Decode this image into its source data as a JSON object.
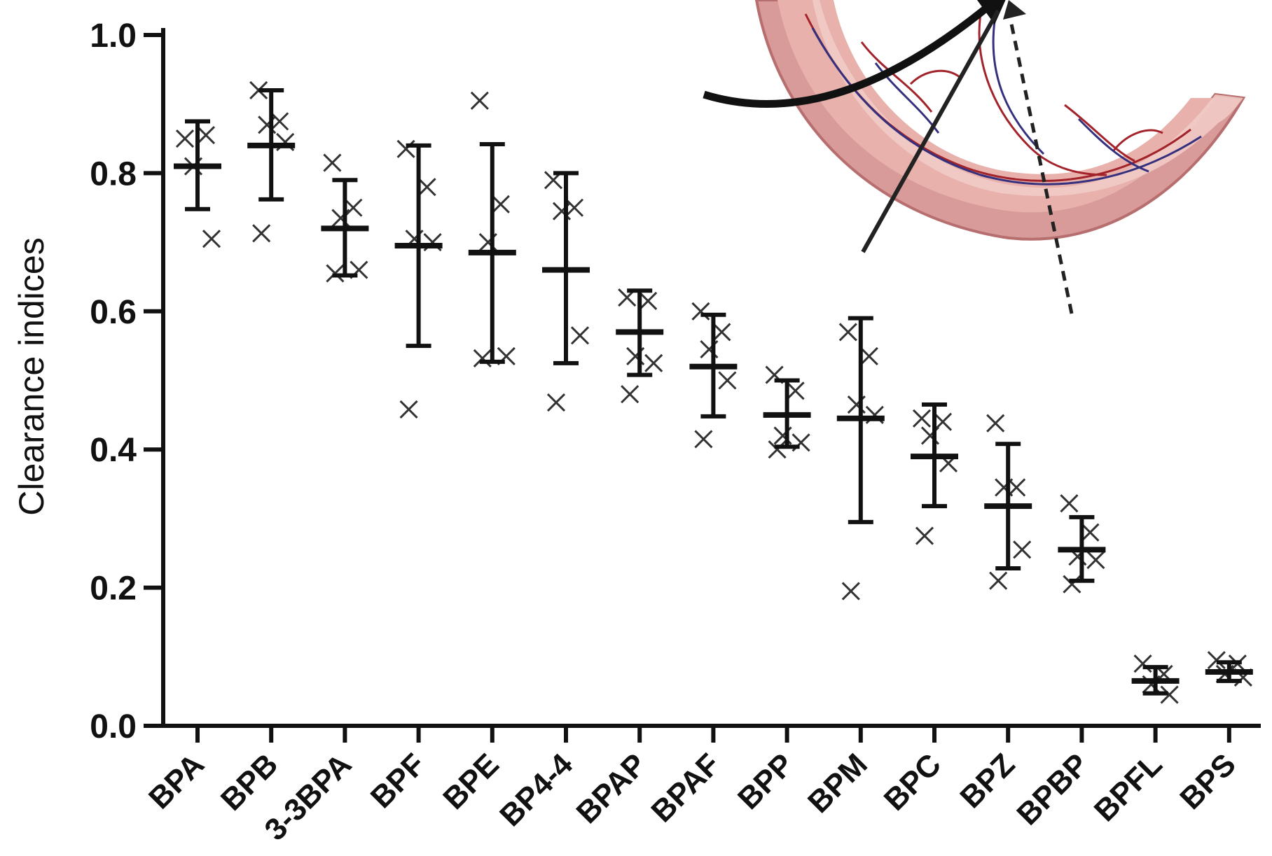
{
  "chart_data": {
    "type": "scatter",
    "title": "",
    "xlabel": "",
    "ylabel": "Clearance indices",
    "ylim": [
      0.0,
      1.0
    ],
    "y_ticks": [
      "0.0",
      "0.2",
      "0.4",
      "0.6",
      "0.8",
      "1.0"
    ],
    "grid": false,
    "legend": "none",
    "categories": [
      "BPA",
      "BPB",
      "3-3BPA",
      "BPF",
      "BPE",
      "BP4-4",
      "BPAP",
      "BPAF",
      "BPP",
      "BPM",
      "BPC",
      "BPZ",
      "BPBP",
      "BPFL",
      "BPS"
    ],
    "mean": [
      0.81,
      0.84,
      0.72,
      0.695,
      0.685,
      0.66,
      0.57,
      0.52,
      0.45,
      0.445,
      0.39,
      0.318,
      0.255,
      0.065,
      0.078
    ],
    "sd_upper": [
      0.875,
      0.92,
      0.79,
      0.84,
      0.842,
      0.8,
      0.63,
      0.595,
      0.5,
      0.59,
      0.465,
      0.408,
      0.302,
      0.085,
      0.092
    ],
    "sd_lower": [
      0.748,
      0.762,
      0.652,
      0.55,
      0.527,
      0.525,
      0.508,
      0.448,
      0.404,
      0.295,
      0.318,
      0.228,
      0.21,
      0.047,
      0.065
    ],
    "points": [
      [
        0.85,
        0.855,
        0.81,
        0.705
      ],
      [
        0.92,
        0.875,
        0.87,
        0.845,
        0.713
      ],
      [
        0.815,
        0.75,
        0.735,
        0.66,
        0.655
      ],
      [
        0.835,
        0.78,
        0.705,
        0.7,
        0.458
      ],
      [
        0.905,
        0.755,
        0.7,
        0.535,
        0.532
      ],
      [
        0.79,
        0.75,
        0.745,
        0.565,
        0.468
      ],
      [
        0.62,
        0.615,
        0.535,
        0.525,
        0.48
      ],
      [
        0.6,
        0.57,
        0.545,
        0.5,
        0.415
      ],
      [
        0.508,
        0.485,
        0.42,
        0.41,
        0.4
      ],
      [
        0.57,
        0.535,
        0.465,
        0.45,
        0.195
      ],
      [
        0.445,
        0.44,
        0.42,
        0.38,
        0.275
      ],
      [
        0.438,
        0.345,
        0.345,
        0.255,
        0.21
      ],
      [
        0.322,
        0.28,
        0.245,
        0.24,
        0.205
      ],
      [
        0.09,
        0.075,
        0.06,
        0.045
      ],
      [
        0.095,
        0.09,
        0.075,
        0.07
      ]
    ],
    "colors": {
      "axis": "#111111",
      "marker": "#333333",
      "inset_tissue": "#d99a9a",
      "inset_tissue_light": "#f1c7c2",
      "inset_artery": "#a3232b",
      "inset_vein": "#34307d"
    },
    "illustration": "placenta-cross-section"
  }
}
